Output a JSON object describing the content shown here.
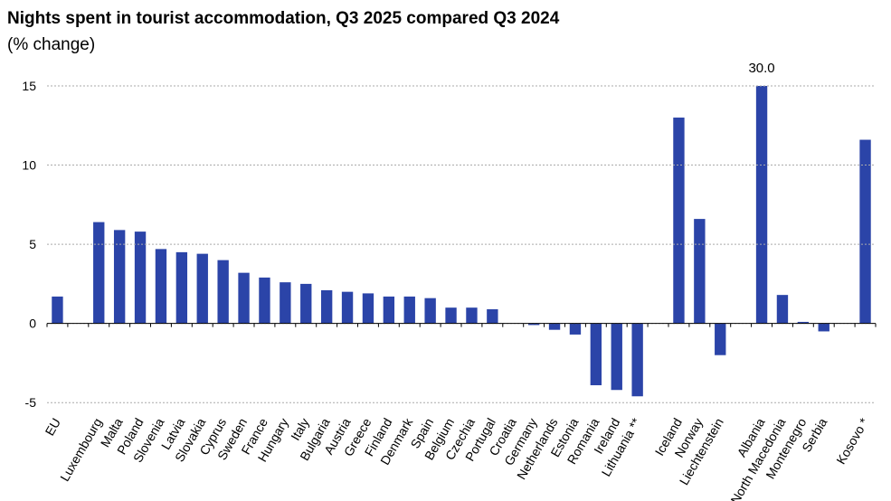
{
  "chart_data": {
    "type": "bar",
    "title": "Nights spent in tourist accommodation, Q3 2025 compared Q3 2024",
    "subtitle": "(% change)",
    "categories": [
      "EU",
      null,
      "Luxembourg",
      "Malta",
      "Poland",
      "Slovenia",
      "Latvia",
      "Slovakia",
      "Cyprus",
      "Sweden",
      "France",
      "Hungary",
      "Italy",
      "Bulgaria",
      "Austria",
      "Greece",
      "Finland",
      "Denmark",
      "Spain",
      "Belgium",
      "Czechia",
      "Portugal",
      "Croatia",
      "Germany",
      "Netherlands",
      "Estonia",
      "Romania",
      "Ireland",
      "Lithuania **",
      null,
      "Iceland",
      "Norway",
      "Liechtenstein",
      null,
      "Albania",
      "North Macedonia",
      "Montenegro",
      "Serbia",
      null,
      "Kosovo *"
    ],
    "values": [
      1.7,
      null,
      6.4,
      5.9,
      5.8,
      4.7,
      4.5,
      4.4,
      4.0,
      3.2,
      2.9,
      2.6,
      2.5,
      2.1,
      2.0,
      1.9,
      1.7,
      1.7,
      1.6,
      1.0,
      1.0,
      0.9,
      0.0,
      -0.1,
      -0.4,
      -0.7,
      -3.9,
      -4.2,
      -4.6,
      null,
      13.0,
      6.6,
      -2.0,
      null,
      30.0,
      1.8,
      0.1,
      -0.5,
      null,
      11.6
    ],
    "value_labels": [
      null,
      null,
      null,
      null,
      null,
      null,
      null,
      null,
      null,
      null,
      null,
      null,
      null,
      null,
      null,
      null,
      null,
      null,
      null,
      null,
      null,
      null,
      null,
      null,
      null,
      null,
      null,
      null,
      null,
      null,
      null,
      null,
      null,
      null,
      "30.0",
      null,
      null,
      null,
      null,
      null
    ],
    "color": "#2b44a8",
    "ylim": [
      -5.5,
      15
    ],
    "yticks": [
      -5,
      0,
      5,
      10,
      15
    ],
    "grid": true
  }
}
